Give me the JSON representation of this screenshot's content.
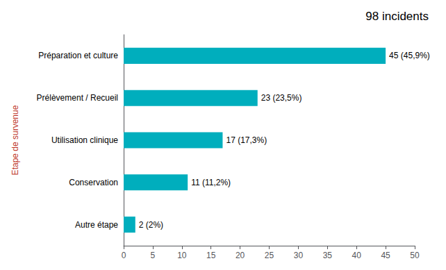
{
  "chart_data": {
    "type": "bar",
    "orientation": "horizontal",
    "title": "98 incidents",
    "ylabel": "Etape de survenue",
    "categories": [
      "Autre étape",
      "Conservation",
      "Utilisation clinique",
      "Prélèvement / Recueil",
      "Préparation et culture"
    ],
    "values": [
      2,
      11,
      17,
      23,
      45
    ],
    "value_labels": [
      "2 (2%)",
      "11 (11,2%)",
      "17 (17,3%)",
      "23 (23,5%)",
      "45 (45,9%)"
    ],
    "data_labels": true,
    "color": "#00AEBD",
    "xlim": [
      0,
      50
    ],
    "xticks": [
      0,
      5,
      10,
      15,
      20,
      25,
      30,
      35,
      40,
      45,
      50
    ],
    "grid": false
  }
}
